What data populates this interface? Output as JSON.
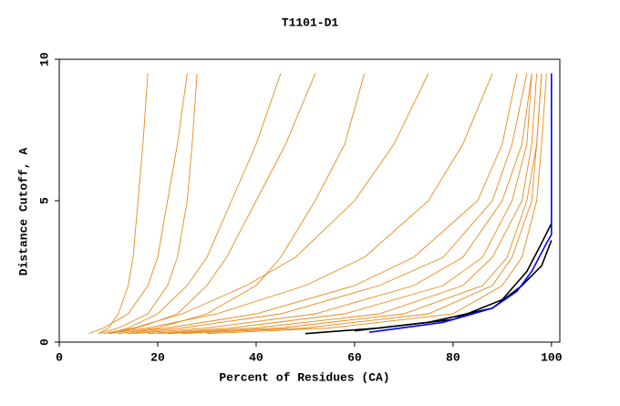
{
  "chart_data": {
    "type": "line",
    "title": "T1101-D1",
    "x_label": "Percent of Residues (CA)",
    "y_label": "Distance Cutoff, A",
    "xlim": [
      0,
      101.7
    ],
    "ylim": [
      0,
      10
    ],
    "xticks": [
      0,
      20,
      40,
      60,
      80,
      100
    ],
    "yticks": [
      0,
      5,
      10
    ],
    "series": [
      {
        "color": "#e88a1a",
        "x": [
          8,
          10,
          12,
          14,
          15,
          16,
          17,
          18
        ],
        "values": [
          0.3,
          0.5,
          1,
          2,
          3,
          5,
          7,
          9.5
        ]
      },
      {
        "color": "#e88a1a",
        "x": [
          10,
          14,
          20,
          26,
          30,
          35,
          40,
          45
        ],
        "values": [
          0.3,
          0.5,
          1,
          2,
          3,
          5,
          7,
          9.5
        ]
      },
      {
        "color": "#e88a1a",
        "x": [
          9,
          15,
          25,
          38,
          48,
          60,
          68,
          75
        ],
        "values": [
          0.3,
          0.5,
          1,
          2,
          3,
          5,
          7,
          9.5
        ]
      },
      {
        "color": "#e88a1a",
        "x": [
          10,
          18,
          32,
          50,
          62,
          75,
          82,
          88
        ],
        "values": [
          0.3,
          0.5,
          1,
          2,
          3,
          5,
          7,
          9.5
        ]
      },
      {
        "color": "#e88a1a",
        "x": [
          12,
          22,
          40,
          60,
          72,
          85,
          90,
          93
        ],
        "values": [
          0.3,
          0.5,
          1,
          2,
          3,
          5,
          7,
          9.5
        ]
      },
      {
        "color": "#e88a1a",
        "x": [
          15,
          30,
          52,
          72,
          82,
          90,
          94,
          96
        ],
        "values": [
          0.3,
          0.5,
          1,
          2,
          3,
          5,
          7,
          9.5
        ]
      },
      {
        "color": "#e88a1a",
        "x": [
          20,
          40,
          65,
          82,
          88,
          94,
          96,
          97
        ],
        "values": [
          0.3,
          0.5,
          1,
          2,
          3,
          5,
          7,
          9.5
        ]
      },
      {
        "color": "#e88a1a",
        "x": [
          25,
          50,
          75,
          88,
          92,
          96,
          97,
          98
        ],
        "values": [
          0.3,
          0.5,
          1,
          2,
          3,
          5,
          7,
          9.5
        ]
      },
      {
        "color": "#e88a1a",
        "x": [
          8,
          12,
          18,
          22,
          24,
          26,
          27,
          28
        ],
        "values": [
          0.3,
          0.5,
          1,
          2,
          3,
          5,
          7,
          9.5
        ]
      },
      {
        "color": "#e88a1a",
        "x": [
          12,
          20,
          30,
          40,
          45,
          52,
          58,
          62
        ],
        "values": [
          0.3,
          0.5,
          1,
          2,
          3,
          5,
          7,
          9.5
        ]
      },
      {
        "color": "#e88a1a",
        "x": [
          18,
          35,
          58,
          78,
          86,
          92,
          95,
          96
        ],
        "values": [
          0.3,
          0.5,
          1,
          2,
          3,
          5,
          7,
          9.5
        ]
      },
      {
        "color": "#e88a1a",
        "x": [
          30,
          55,
          80,
          90,
          94,
          97,
          98,
          99
        ],
        "values": [
          0.3,
          0.5,
          1,
          2,
          3,
          5,
          7,
          9.5
        ]
      },
      {
        "color": "#e88a1a",
        "x": [
          6,
          9,
          14,
          18,
          20,
          22,
          24,
          26
        ],
        "values": [
          0.3,
          0.5,
          1,
          2,
          3,
          5,
          7,
          9.5
        ]
      },
      {
        "color": "#e88a1a",
        "x": [
          14,
          25,
          45,
          65,
          78,
          88,
          92,
          95
        ],
        "values": [
          0.3,
          0.5,
          1,
          2,
          3,
          5,
          7,
          9.5
        ]
      },
      {
        "color": "#e88a1a",
        "x": [
          22,
          45,
          70,
          86,
          91,
          95,
          97,
          98
        ],
        "values": [
          0.3,
          0.5,
          1,
          2,
          3,
          5,
          7,
          9.5
        ]
      },
      {
        "color": "#e88a1a",
        "x": [
          10,
          16,
          24,
          30,
          34,
          40,
          46,
          52
        ],
        "values": [
          0.3,
          0.5,
          1,
          2,
          3,
          5,
          7,
          9.5
        ]
      },
      {
        "color": "#000000",
        "x": [
          50,
          65,
          80,
          90,
          95,
          98,
          100
        ],
        "values": [
          0.3,
          0.5,
          0.8,
          1.5,
          2.5,
          3.5,
          4.2
        ]
      },
      {
        "color": "#000000",
        "x": [
          60,
          75,
          88,
          94,
          98,
          100
        ],
        "values": [
          0.4,
          0.7,
          1.2,
          2,
          2.7,
          3.6
        ]
      },
      {
        "color": "#0000ff",
        "x": [
          63,
          78,
          88,
          93,
          96,
          99,
          100,
          100
        ],
        "values": [
          0.35,
          0.7,
          1.2,
          1.8,
          2.5,
          3.5,
          3.8,
          9.5
        ]
      }
    ]
  }
}
